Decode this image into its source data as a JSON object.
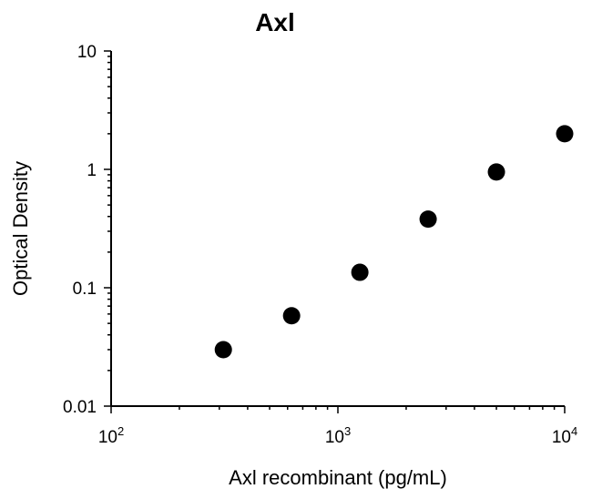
{
  "chart_data": {
    "type": "scatter",
    "title": "Axl",
    "xlabel": "Axl recombinant (pg/mL)",
    "ylabel": "Optical Density",
    "x_scale": "log",
    "y_scale": "log",
    "xlim": [
      100,
      10000
    ],
    "ylim": [
      0.01,
      10
    ],
    "x_ticks": [
      {
        "value": 100,
        "base": "10",
        "exp": "2"
      },
      {
        "value": 1000,
        "base": "10",
        "exp": "3"
      },
      {
        "value": 10000,
        "base": "10",
        "exp": "4"
      }
    ],
    "y_ticks": [
      {
        "value": 10,
        "label": "10"
      },
      {
        "value": 1,
        "label": "1"
      },
      {
        "value": 0.1,
        "label": "0.1"
      },
      {
        "value": 0.01,
        "label": "0.01"
      }
    ],
    "points": [
      {
        "x": 312.5,
        "y": 0.03
      },
      {
        "x": 625,
        "y": 0.058
      },
      {
        "x": 1250,
        "y": 0.135
      },
      {
        "x": 2500,
        "y": 0.38
      },
      {
        "x": 5000,
        "y": 0.95
      },
      {
        "x": 10000,
        "y": 2.0
      }
    ],
    "marker_color": "#000000",
    "grid": false
  }
}
